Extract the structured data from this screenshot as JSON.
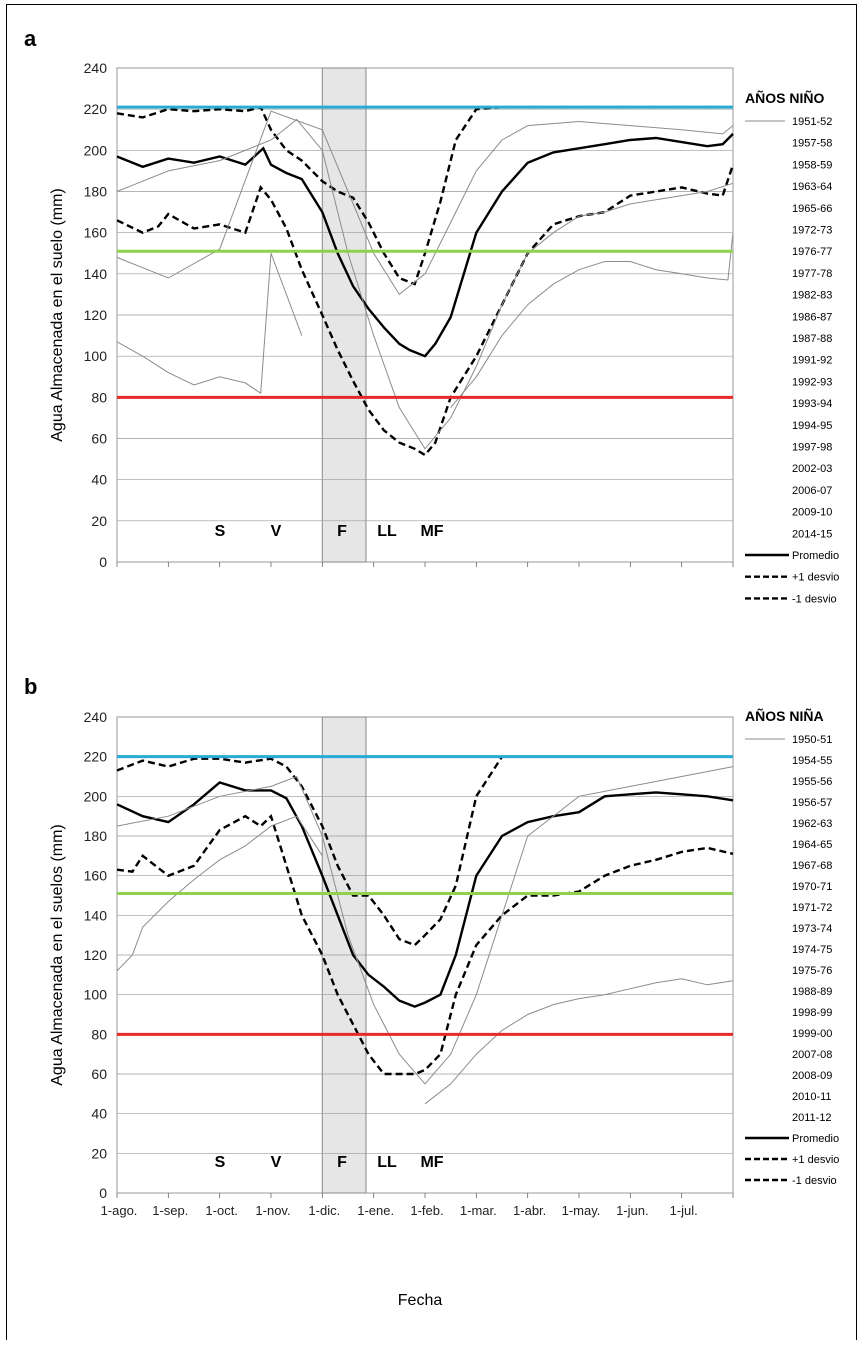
{
  "figure": {
    "xlabel": "Fecha",
    "xtick_labels": [
      "1-ago.",
      "1-sep.",
      "1-oct.",
      "1-nov.",
      "1-dic.",
      "1-ene.",
      "1-feb.",
      "1-mar.",
      "1-abr.",
      "1-may.",
      "1-jun.",
      "1-jul."
    ]
  },
  "chart_data": [
    {
      "panel": "a",
      "type": "line",
      "ylabel": "Agua Almacenada en el suelo (mm)",
      "ylim": [
        0,
        240
      ],
      "yticks": [
        0,
        20,
        40,
        60,
        80,
        100,
        120,
        140,
        160,
        180,
        200,
        220,
        240
      ],
      "grid": true,
      "legend_title": "AÑOS NIÑO",
      "legend_placement": "right",
      "years": [
        "1951-52",
        "1957-58",
        "1958-59",
        "1963-64",
        "1965-66",
        "1972-73",
        "1976-77",
        "1977-78",
        "1982-83",
        "1986-87",
        "1987-88",
        "1991-92",
        "1992-93",
        "1993-94",
        "1994-95",
        "1997-98",
        "2002-03",
        "2006-07",
        "2009-10",
        "2014-15"
      ],
      "stat_labels": [
        "Promedio",
        "+1 desvio",
        "-1 desvio"
      ],
      "thresholds": [
        {
          "value": 221,
          "color": "#29a9d6"
        },
        {
          "value": 151,
          "color": "#8fd14f"
        },
        {
          "value": 80,
          "color": "#e62a2a"
        }
      ],
      "stages": [
        "S",
        "V",
        "F",
        "LL",
        "MF"
      ],
      "shaded_x": [
        4.0,
        4.85
      ],
      "x_units": "months since 1-ago.",
      "series": [
        {
          "name": "Promedio",
          "style": "solid",
          "x": [
            0,
            0.5,
            1,
            1.5,
            2,
            2.5,
            2.85,
            3,
            3.3,
            3.6,
            4,
            4.3,
            4.6,
            4.9,
            5.2,
            5.5,
            5.7,
            6,
            6.2,
            6.5,
            7,
            7.5,
            8,
            8.5,
            9,
            9.5,
            10,
            10.5,
            11,
            11.5,
            11.8,
            12
          ],
          "y": [
            197,
            192,
            196,
            194,
            197,
            193,
            201,
            193,
            189,
            186,
            170,
            150,
            134,
            123,
            114,
            106,
            103,
            100,
            106,
            119,
            160,
            180,
            194,
            199,
            201,
            203,
            205,
            206,
            204,
            202,
            203,
            208
          ]
        },
        {
          "name": "+1 desvio",
          "style": "dashed",
          "x": [
            0,
            0.5,
            1,
            1.5,
            2,
            2.5,
            2.8,
            3,
            3.3,
            3.6,
            4,
            4.3,
            4.6,
            4.9,
            5.2,
            5.5,
            5.8,
            6,
            6.3,
            6.6,
            7,
            7.5,
            8,
            9,
            10,
            11,
            11.8,
            12
          ],
          "y": [
            218,
            216,
            220,
            219,
            220,
            219,
            221,
            210,
            200,
            195,
            185,
            180,
            177,
            165,
            150,
            138,
            135,
            150,
            175,
            205,
            220,
            221,
            221,
            221,
            221,
            221,
            221,
            221
          ]
        },
        {
          "name": "-1 desvio",
          "style": "dashed",
          "x": [
            0,
            0.5,
            0.8,
            1,
            1.5,
            2,
            2.5,
            2.8,
            3,
            3.3,
            3.6,
            4,
            4.3,
            4.6,
            4.9,
            5.2,
            5.5,
            5.8,
            6,
            6.2,
            6.5,
            7,
            7.5,
            8,
            8.5,
            9,
            9.5,
            10,
            10.5,
            11,
            11.5,
            11.8,
            12
          ],
          "y": [
            166,
            160,
            163,
            169,
            162,
            164,
            160,
            182,
            176,
            162,
            142,
            120,
            103,
            88,
            74,
            64,
            58,
            55,
            52,
            58,
            80,
            100,
            125,
            150,
            164,
            168,
            170,
            178,
            180,
            182,
            179,
            178,
            193
          ]
        },
        {
          "name": "1994-95",
          "style": "thin",
          "x": [
            0,
            0.5,
            1,
            1.5,
            2,
            2.5,
            2.8,
            3,
            3.3,
            3.6
          ],
          "y": [
            107,
            100,
            92,
            86,
            90,
            87,
            82,
            150,
            130,
            110
          ]
        },
        {
          "name": "1982-83",
          "style": "thin",
          "x": [
            0,
            0.5,
            1,
            2,
            3,
            4,
            4.5,
            5,
            5.5,
            6,
            6.5,
            7,
            7.5,
            8,
            9,
            10,
            11,
            11.8,
            12
          ],
          "y": [
            148,
            143,
            138,
            152,
            219,
            210,
            180,
            150,
            130,
            140,
            165,
            190,
            205,
            212,
            214,
            212,
            210,
            208,
            212
          ]
        },
        {
          "name": "2014-15",
          "style": "thin",
          "x": [
            6.5,
            7,
            7.5,
            8,
            8.5,
            9,
            9.5,
            10,
            10.5,
            11,
            11.5,
            11.9,
            12
          ],
          "y": [
            75,
            90,
            110,
            125,
            135,
            142,
            146,
            146,
            142,
            140,
            138,
            137,
            160
          ]
        },
        {
          "name": "2009-10",
          "style": "thin",
          "x": [
            0,
            1,
            2,
            3,
            3.5,
            4,
            4.5,
            5,
            5.5,
            6,
            6.5,
            7,
            7.5,
            8,
            8.5,
            9,
            9.5,
            10,
            10.5,
            11,
            11.5,
            12
          ],
          "y": [
            180,
            190,
            195,
            205,
            215,
            200,
            150,
            110,
            75,
            55,
            70,
            95,
            125,
            150,
            160,
            168,
            170,
            174,
            176,
            178,
            180,
            184
          ]
        }
      ]
    },
    {
      "panel": "b",
      "type": "line",
      "ylabel": "Agua Almacenada en el suelos (mm)",
      "ylim": [
        0,
        240
      ],
      "yticks": [
        0,
        20,
        40,
        60,
        80,
        100,
        120,
        140,
        160,
        180,
        200,
        220,
        240
      ],
      "grid": true,
      "legend_title": "AÑOS NIÑA",
      "legend_placement": "right",
      "years": [
        "1950-51",
        "1954-55",
        "1955-56",
        "1956-57",
        "1962-63",
        "1964-65",
        "1967-68",
        "1970-71",
        "1971-72",
        "1973-74",
        "1974-75",
        "1975-76",
        "1988-89",
        "1998-99",
        "1999-00",
        "2007-08",
        "2008-09",
        "2010-11",
        "2011-12"
      ],
      "stat_labels": [
        "Promedio",
        "+1 desvio",
        "-1 desvio"
      ],
      "thresholds": [
        {
          "value": 220,
          "color": "#29a9d6"
        },
        {
          "value": 151,
          "color": "#8fd14f"
        },
        {
          "value": 80,
          "color": "#e62a2a"
        }
      ],
      "stages": [
        "S",
        "V",
        "F",
        "LL",
        "MF"
      ],
      "shaded_x": [
        4.0,
        4.85
      ],
      "x_units": "months since 1-ago.",
      "series": [
        {
          "name": "Promedio",
          "style": "solid",
          "x": [
            0,
            0.5,
            1,
            1.5,
            2,
            2.5,
            3,
            3.3,
            3.6,
            4,
            4.3,
            4.6,
            4.9,
            5.2,
            5.5,
            5.8,
            6,
            6.3,
            6.6,
            7,
            7.5,
            8,
            8.5,
            9,
            9.5,
            10,
            10.5,
            11,
            11.5,
            12
          ],
          "y": [
            196,
            190,
            187,
            196,
            207,
            203,
            203,
            199,
            185,
            160,
            140,
            120,
            110,
            104,
            97,
            94,
            96,
            100,
            120,
            160,
            180,
            187,
            190,
            192,
            200,
            201,
            202,
            201,
            200,
            198
          ]
        },
        {
          "name": "+1 desvio",
          "style": "dashed",
          "x": [
            0,
            0.5,
            1,
            1.5,
            2,
            2.5,
            3,
            3.3,
            3.6,
            4,
            4.3,
            4.6,
            4.9,
            5.2,
            5.5,
            5.8,
            6,
            6.3,
            6.6,
            7,
            7.5,
            8,
            9,
            10,
            11,
            12
          ],
          "y": [
            213,
            218,
            215,
            219,
            219,
            217,
            219,
            215,
            205,
            185,
            165,
            150,
            150,
            140,
            128,
            125,
            130,
            138,
            155,
            200,
            220,
            220,
            220,
            220,
            220,
            220
          ]
        },
        {
          "name": "-1 desvio",
          "style": "dashed",
          "x": [
            0,
            0.3,
            0.5,
            1,
            1.5,
            2,
            2.5,
            2.8,
            3,
            3.3,
            3.6,
            4,
            4.3,
            4.6,
            4.9,
            5.2,
            5.5,
            5.8,
            6,
            6.3,
            6.6,
            7,
            7.5,
            8,
            8.5,
            9,
            9.5,
            10,
            10.5,
            11,
            11.5,
            12
          ],
          "y": [
            163,
            162,
            170,
            160,
            165,
            183,
            190,
            185,
            190,
            165,
            140,
            120,
            100,
            85,
            70,
            60,
            60,
            60,
            62,
            70,
            100,
            125,
            140,
            150,
            150,
            152,
            160,
            165,
            168,
            172,
            174,
            171
          ]
        },
        {
          "name": "1950-51",
          "style": "thin",
          "x": [
            0,
            0.3,
            0.5,
            1,
            1.5,
            2,
            2.5,
            3,
            3.5,
            4
          ],
          "y": [
            112,
            120,
            134,
            147,
            158,
            168,
            175,
            185,
            190,
            170
          ]
        },
        {
          "name": "2011-12",
          "style": "thin",
          "x": [
            6,
            6.5,
            7,
            7.5,
            8,
            8.5,
            9,
            9.5,
            10,
            10.5,
            11,
            11.5,
            12
          ],
          "y": [
            45,
            55,
            70,
            82,
            90,
            95,
            98,
            100,
            103,
            106,
            108,
            105,
            107
          ]
        },
        {
          "name": "1988-89",
          "style": "thin",
          "x": [
            0,
            1,
            2,
            3,
            3.5,
            4,
            4.5,
            5,
            5.5,
            6,
            6.5,
            7,
            7.5,
            8,
            9,
            10,
            11,
            12
          ],
          "y": [
            185,
            190,
            200,
            205,
            210,
            180,
            130,
            95,
            70,
            55,
            70,
            100,
            140,
            180,
            200,
            205,
            210,
            215
          ]
        }
      ]
    }
  ]
}
